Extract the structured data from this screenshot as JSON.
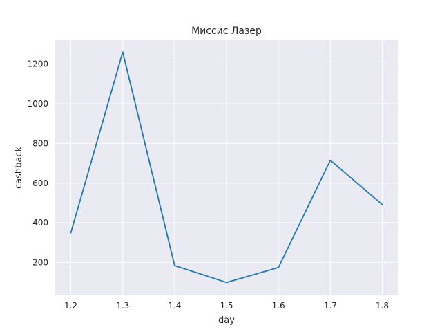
{
  "chart_data": {
    "type": "line",
    "title": "Миссис Лазер",
    "xlabel": "day",
    "ylabel": "cashback",
    "x": [
      1.2,
      1.3,
      1.4,
      1.5,
      1.6,
      1.7,
      1.8
    ],
    "series": [
      {
        "values": [
          350,
          1260,
          185,
          100,
          175,
          715,
          492
        ],
        "color": "#1f77b4"
      }
    ],
    "xticks": [
      "1.2",
      "1.3",
      "1.4",
      "1.5",
      "1.6",
      "1.7",
      "1.8"
    ],
    "yticks": [
      "200",
      "400",
      "600",
      "800",
      "1000",
      "1200"
    ],
    "xlim": [
      1.17,
      1.83
    ],
    "ylim": [
      35,
      1320
    ],
    "grid": true,
    "background": "#eaeaf2",
    "grid_color": "#ffffff"
  }
}
